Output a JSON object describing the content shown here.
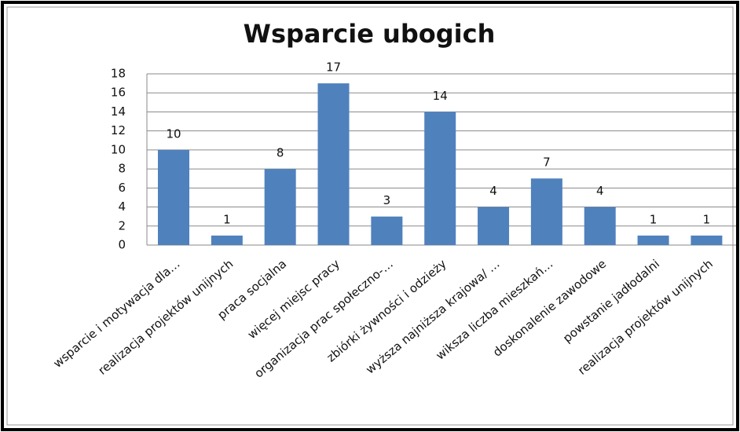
{
  "chart_data": {
    "type": "bar",
    "title": "Wsparcie ubogich",
    "categories": [
      "wsparcie i motywacja  dla…",
      "realizacja projektów unijnych",
      "praca socjalna",
      "więcej miejsc pracy",
      "organizacja prac społeczno-…",
      "zbiórki żywności i odzieży",
      "wyższa najniższa krajowa/ …",
      "wiksza liczba mieszkań…",
      "doskonalenie zawodowe",
      "powstanie jadłodalni",
      "realizacja projektów unijnych"
    ],
    "values": [
      10,
      1,
      8,
      17,
      3,
      14,
      4,
      7,
      4,
      1,
      1
    ],
    "color": "#4f81bd",
    "ylim": [
      0,
      18
    ],
    "yticks": [
      0,
      2,
      4,
      6,
      8,
      10,
      12,
      14,
      16,
      18
    ],
    "grid": true
  }
}
